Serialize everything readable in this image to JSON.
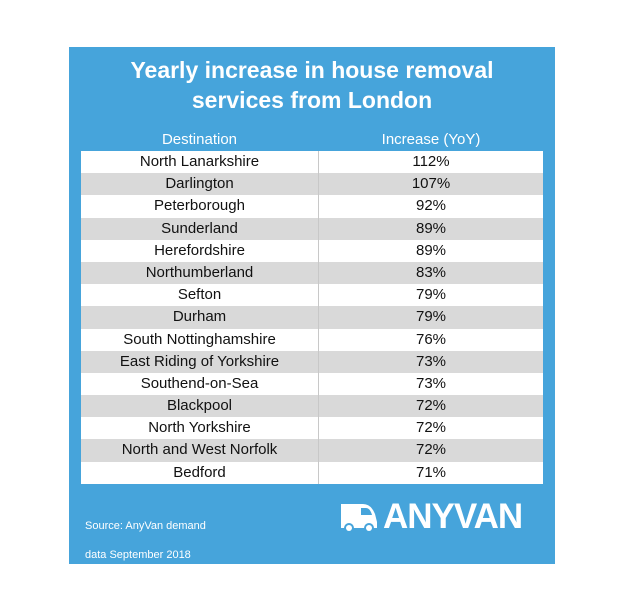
{
  "chart_data": {
    "type": "table",
    "title": "Yearly increase in house removal services from London",
    "title_lines": [
      "Yearly increase in house removal",
      "services from London"
    ],
    "columns": [
      "Destination",
      "Increase (YoY)"
    ],
    "rows": [
      {
        "destination": "North Lanarkshire",
        "increase": "112%"
      },
      {
        "destination": "Darlington",
        "increase": "107%"
      },
      {
        "destination": "Peterborough",
        "increase": "92%"
      },
      {
        "destination": "Sunderland",
        "increase": "89%"
      },
      {
        "destination": "Herefordshire",
        "increase": "89%"
      },
      {
        "destination": "Northumberland",
        "increase": "83%"
      },
      {
        "destination": "Sefton",
        "increase": "79%"
      },
      {
        "destination": "Durham",
        "increase": "79%"
      },
      {
        "destination": "South Nottinghamshire",
        "increase": "76%"
      },
      {
        "destination": "East Riding of Yorkshire",
        "increase": "73%"
      },
      {
        "destination": "Southend-on-Sea",
        "increase": "73%"
      },
      {
        "destination": "Blackpool",
        "increase": "72%"
      },
      {
        "destination": "North Yorkshire",
        "increase": "72%"
      },
      {
        "destination": "North and West Norfolk",
        "increase": "72%"
      },
      {
        "destination": "Bedford",
        "increase": "71%"
      }
    ],
    "source_lines": [
      "Source: AnyVan demand",
      "data September 2018"
    ]
  },
  "logo": {
    "text": "ANYVAN",
    "icon": "van-icon"
  },
  "colors": {
    "panel": "#46a4db",
    "row_alt": "#d9d9d9",
    "row": "#ffffff"
  }
}
